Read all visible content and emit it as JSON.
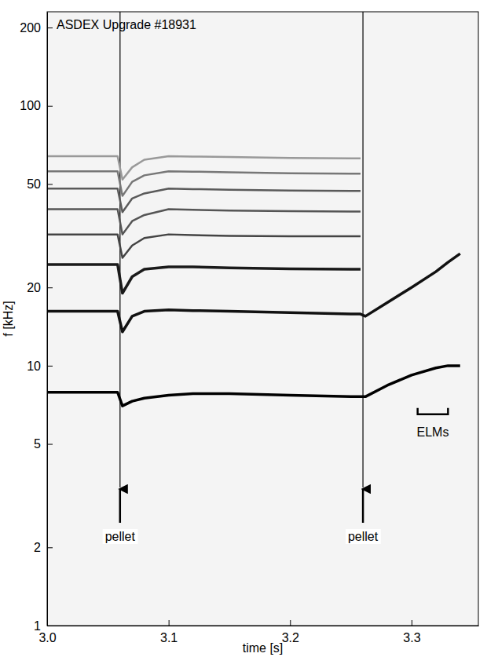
{
  "chart_data": {
    "type": "line",
    "title": "ASDEX Upgrade #18931",
    "x_label": "time [s]",
    "y_label": "f [kHz]",
    "log": "y",
    "grid": false,
    "xlim": [
      3.0,
      3.355
    ],
    "ylim": [
      1,
      230
    ],
    "xticks": [
      {
        "value": 3.0,
        "label": "3.0"
      },
      {
        "value": 3.1,
        "label": "3.1"
      },
      {
        "value": 3.2,
        "label": "3.2"
      },
      {
        "value": 3.3,
        "label": "3.3"
      }
    ],
    "yticks": [
      1,
      2,
      5,
      10,
      20,
      50,
      100,
      200
    ],
    "x": [
      3.0,
      3.02,
      3.04,
      3.058,
      3.062,
      3.07,
      3.08,
      3.1,
      3.12,
      3.15,
      3.2,
      3.25,
      3.258,
      3.262,
      3.28,
      3.3,
      3.32,
      3.33,
      3.34
    ],
    "series": [
      {
        "color": "#000000",
        "values": [
          7.9,
          7.9,
          7.9,
          7.9,
          7.0,
          7.3,
          7.5,
          7.7,
          7.8,
          7.8,
          7.7,
          7.6,
          7.6,
          7.6,
          8.4,
          9.2,
          9.8,
          10.0,
          10.0
        ]
      },
      {
        "color": "#111111",
        "values": [
          16.2,
          16.2,
          16.2,
          16.2,
          13.5,
          15.5,
          16.2,
          16.4,
          16.3,
          16.2,
          16.0,
          15.8,
          15.8,
          15.5,
          17.5,
          20.0,
          23.0,
          25.0,
          27.0
        ]
      },
      {
        "color": "#1a1a1a",
        "values": [
          24.5,
          24.5,
          24.5,
          24.5,
          19.0,
          22.0,
          23.5,
          24.0,
          24.0,
          23.8,
          23.6,
          23.5,
          23.5,
          null,
          null,
          null,
          null,
          null,
          null
        ]
      },
      {
        "color": "#444444",
        "values": [
          32.0,
          32.0,
          32.0,
          32.0,
          26.0,
          29.0,
          31.0,
          32.0,
          31.8,
          31.6,
          31.5,
          31.5,
          31.5,
          null,
          null,
          null,
          null,
          null,
          null
        ]
      },
      {
        "color": "#555555",
        "values": [
          40.0,
          40.0,
          40.0,
          40.0,
          32.0,
          36.0,
          38.0,
          40.0,
          39.8,
          39.5,
          39.3,
          39.2,
          39.2,
          null,
          null,
          null,
          null,
          null,
          null
        ]
      },
      {
        "color": "#5a5a5a",
        "values": [
          48.0,
          48.0,
          48.0,
          48.0,
          39.0,
          44.0,
          46.0,
          48.0,
          47.8,
          47.5,
          47.2,
          47.0,
          47.0,
          null,
          null,
          null,
          null,
          null,
          null
        ]
      },
      {
        "color": "#777777",
        "values": [
          56.0,
          56.0,
          56.0,
          56.0,
          45.0,
          51.0,
          54.0,
          56.0,
          55.8,
          55.5,
          55.0,
          54.8,
          54.8,
          null,
          null,
          null,
          null,
          null,
          null
        ]
      },
      {
        "color": "#999999",
        "values": [
          64.0,
          64.0,
          64.0,
          64.0,
          52.0,
          58.0,
          62.0,
          64.0,
          63.8,
          63.5,
          63.0,
          62.8,
          62.8,
          null,
          null,
          null,
          null,
          null,
          null
        ]
      }
    ],
    "annotations": [
      {
        "text": "pellet",
        "x": 3.06,
        "y": 3.4
      },
      {
        "text": "pellet",
        "x": 3.26,
        "y": 3.4
      },
      {
        "text": "ELMs",
        "x": [
          3.305,
          3.33
        ],
        "y": 6.5
      }
    ]
  }
}
